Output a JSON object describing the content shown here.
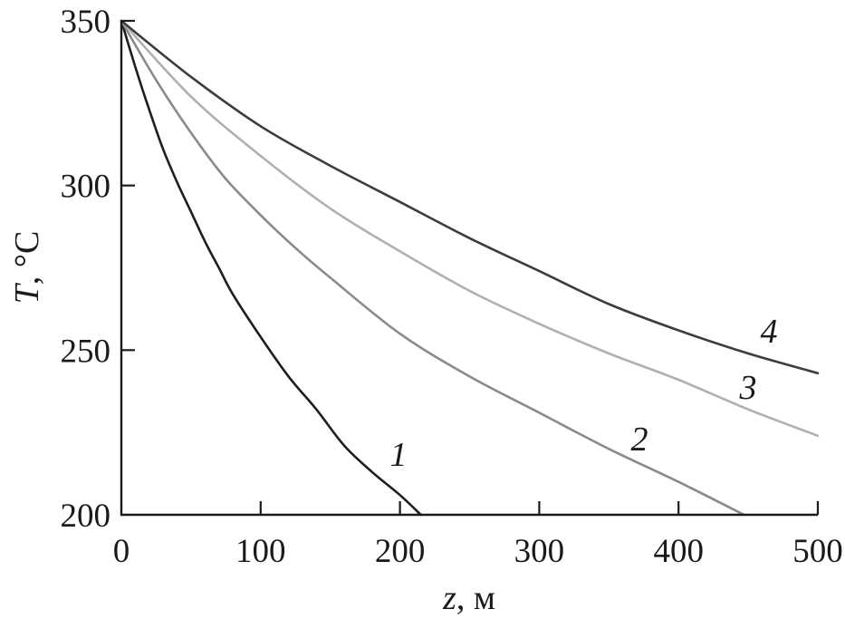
{
  "chart_data": {
    "type": "line",
    "xlabel": "z, м",
    "ylabel": "T, °C",
    "xlim": [
      0,
      500
    ],
    "ylim": [
      200,
      350
    ],
    "xticks": [
      0,
      100,
      200,
      300,
      400,
      500
    ],
    "yticks": [
      200,
      250,
      300,
      350
    ],
    "grid": false,
    "legend": "none",
    "series": [
      {
        "name": "1",
        "color": "#1e1e1e",
        "x": [
          0,
          10,
          20,
          30,
          40,
          50,
          60,
          70,
          80,
          100,
          120,
          140,
          160,
          180,
          200,
          215
        ],
        "y": [
          350,
          336,
          323,
          311,
          301,
          292,
          283,
          275,
          267,
          254,
          242,
          232,
          221,
          213,
          206,
          200
        ]
      },
      {
        "name": "2",
        "color": "#8a8a8a",
        "x": [
          0,
          25,
          50,
          75,
          100,
          125,
          150,
          200,
          250,
          300,
          350,
          400,
          447
        ],
        "y": [
          350,
          332,
          316,
          302,
          291,
          281,
          272,
          255,
          242,
          231,
          220,
          210,
          200
        ]
      },
      {
        "name": "3",
        "color": "#b0b0b0",
        "x": [
          0,
          50,
          100,
          150,
          200,
          250,
          300,
          350,
          400,
          450,
          500
        ],
        "y": [
          350,
          327,
          309,
          293,
          280,
          268,
          258,
          249,
          241,
          232,
          224
        ]
      },
      {
        "name": "4",
        "color": "#3c3c3c",
        "x": [
          0,
          50,
          100,
          150,
          200,
          250,
          300,
          350,
          400,
          450,
          500
        ],
        "y": [
          350,
          333,
          318,
          306,
          295,
          284,
          274,
          264,
          256,
          249,
          243
        ]
      }
    ]
  }
}
